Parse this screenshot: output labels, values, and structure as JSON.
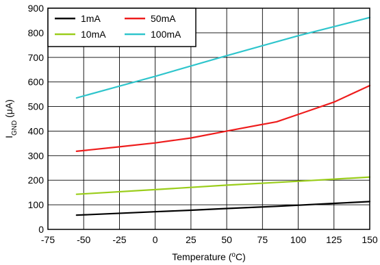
{
  "chart_data": {
    "type": "line",
    "xlabel": {
      "text": "Temperature (",
      "sup": "o",
      "tail": "C)"
    },
    "ylabel": {
      "main": "I",
      "sub": "GND",
      "tail": " (μA)"
    },
    "xlim": [
      -75,
      150
    ],
    "ylim": [
      0,
      900
    ],
    "xticks": [
      -75,
      -50,
      -25,
      0,
      25,
      50,
      75,
      100,
      125,
      150
    ],
    "yticks": [
      0,
      100,
      200,
      300,
      400,
      500,
      600,
      700,
      800,
      900
    ],
    "grid": true,
    "legend_position": "top-left",
    "series": [
      {
        "name": "1mA",
        "color": "#000000",
        "x": [
          -55,
          0,
          25,
          50,
          85,
          125,
          150
        ],
        "y": [
          58,
          72,
          78,
          85,
          94,
          106,
          113
        ]
      },
      {
        "name": "50mA",
        "color": "#ee1c1c",
        "x": [
          -55,
          -25,
          0,
          25,
          50,
          85,
          105,
          125,
          150
        ],
        "y": [
          318,
          336,
          352,
          372,
          400,
          438,
          478,
          518,
          585
        ]
      },
      {
        "name": "10mA",
        "color": "#9acd1a",
        "x": [
          -55,
          0,
          50,
          100,
          150
        ],
        "y": [
          143,
          162,
          180,
          196,
          213
        ]
      },
      {
        "name": "100mA",
        "color": "#2ec5cc",
        "x": [
          -55,
          0,
          50,
          100,
          150
        ],
        "y": [
          535,
          623,
          707,
          788,
          862
        ]
      }
    ]
  }
}
